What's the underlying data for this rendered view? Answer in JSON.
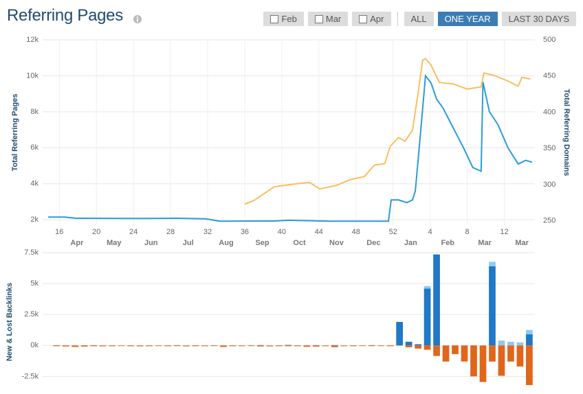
{
  "header": {
    "title": "Referring Pages",
    "buttons": [
      {
        "label": "Feb",
        "checkbox": true
      },
      {
        "label": "Mar",
        "checkbox": true
      },
      {
        "label": "Apr",
        "checkbox": true
      },
      {
        "label": "ALL"
      },
      {
        "label": "ONE YEAR",
        "active": true
      },
      {
        "label": "LAST 30 DAYS"
      }
    ]
  },
  "chart_data": [
    {
      "type": "line",
      "y_label": "Total Referring Pages",
      "y2_label": "Total Referring Domains",
      "xlim": [
        14.2,
        67.3
      ],
      "xticks": [
        16,
        20,
        24,
        28,
        32,
        36,
        40,
        44,
        48,
        52,
        {
          "value": 56,
          "label": "4"
        },
        {
          "value": 60,
          "label": "8"
        },
        {
          "value": 64,
          "label": "12"
        }
      ],
      "month_ticks": [
        {
          "value": 17.9,
          "label": "Apr"
        },
        {
          "value": 21.9,
          "label": "May"
        },
        {
          "value": 25.9,
          "label": "Jun"
        },
        {
          "value": 29.9,
          "label": "Jul"
        },
        {
          "value": 34.0,
          "label": "Aug"
        },
        {
          "value": 37.9,
          "label": "Sep"
        },
        {
          "value": 41.9,
          "label": "Oct"
        },
        {
          "value": 45.9,
          "label": "Nov"
        },
        {
          "value": 49.9,
          "label": "Dec"
        },
        {
          "value": 53.9,
          "label": "Jan"
        },
        {
          "value": 57.9,
          "label": "Feb"
        },
        {
          "value": 61.9,
          "label": "Mar"
        },
        {
          "value": 65.9,
          "label": "Mar"
        }
      ],
      "ylim": [
        1700,
        12000
      ],
      "yticks": [
        {
          "value": 2000,
          "label": "2k"
        },
        {
          "value": 4000,
          "label": "4k"
        },
        {
          "value": 6000,
          "label": "6k"
        },
        {
          "value": 8000,
          "label": "8k"
        },
        {
          "value": 10000,
          "label": "10k"
        },
        {
          "value": 12000,
          "label": "12k"
        }
      ],
      "y2lim": [
        244,
        500
      ],
      "y2ticks": [
        250,
        300,
        350,
        400,
        450,
        500
      ],
      "grid": true,
      "series": [
        {
          "color": "#2b9ad6",
          "x": [
            14.8,
            16.6,
            17.8,
            24.4,
            28.9,
            31.8,
            33.3,
            39.2,
            40.7,
            45.2,
            51.5,
            51.8,
            52.6,
            53.5,
            54.1,
            54.4,
            55.0,
            55.5,
            56.1,
            56.7,
            57.4,
            58.1,
            58.9,
            59.6,
            60.6,
            61.5,
            61.7,
            62.4,
            63.3,
            64.4,
            65.5,
            66.3,
            67.0
          ],
          "values": [
            2150,
            2150,
            2080,
            2070,
            2080,
            2050,
            1920,
            1930,
            1970,
            1920,
            1920,
            3100,
            3100,
            2950,
            3100,
            3600,
            7000,
            10000,
            9600,
            8700,
            8200,
            7500,
            6700,
            6000,
            4900,
            4700,
            9650,
            8000,
            7300,
            6000,
            5100,
            5300,
            5200
          ]
        },
        {
          "color": "#f9be5d",
          "axis": "y2",
          "x": [
            36.0,
            37.0,
            37.8,
            39.2,
            41.5,
            43.0,
            44.1,
            45.9,
            47.4,
            48.9,
            50.0,
            51.1,
            51.7,
            52.6,
            53.3,
            54.1,
            54.6,
            55.2,
            55.5,
            56.1,
            57.0,
            58.5,
            60.0,
            61.5,
            61.8,
            62.9,
            64.4,
            65.5,
            65.9,
            66.8
          ],
          "values": [
            273,
            278,
            285,
            297,
            301,
            303,
            294,
            299,
            307,
            311,
            327,
            329,
            353,
            365,
            360,
            375,
            418,
            472,
            474,
            465,
            441,
            439,
            432,
            435,
            454,
            451,
            443,
            436,
            448,
            446
          ]
        }
      ]
    },
    {
      "type": "bar",
      "y_label": "New & Lost Backlinks",
      "stacked": true,
      "x": [
        15,
        16,
        17,
        18,
        19,
        20,
        21,
        22,
        23,
        24,
        25,
        26,
        27,
        28,
        29,
        30,
        31,
        32,
        33,
        34,
        35,
        36,
        37,
        38,
        39,
        40,
        41,
        42,
        43,
        44,
        45,
        46,
        47,
        48,
        49,
        50,
        51,
        52,
        53,
        54,
        55,
        56,
        57,
        58,
        59,
        60,
        61,
        62,
        63,
        64,
        65,
        66
      ],
      "xlim": [
        13.5,
        66.6
      ],
      "ylim": [
        -3700,
        7500
      ],
      "yticks": [
        {
          "value": 7500,
          "label": "7.5k"
        },
        {
          "value": 5000,
          "label": "5k"
        },
        {
          "value": 2500,
          "label": "2.5k"
        },
        {
          "value": 0,
          "label": "0k"
        },
        {
          "value": -2500,
          "label": "-2.5k"
        }
      ],
      "grid": true,
      "series": [
        {
          "color": "#1f78c8",
          "values": [
            20,
            10,
            0,
            10,
            20,
            0,
            10,
            0,
            10,
            0,
            10,
            0,
            10,
            20,
            0,
            10,
            0,
            10,
            0,
            10,
            0,
            10,
            30,
            0,
            10,
            40,
            10,
            0,
            20,
            0,
            30,
            0,
            10,
            0,
            20,
            0,
            10,
            1900,
            300,
            100,
            4600,
            7350,
            0,
            0,
            0,
            0,
            0,
            6400,
            0,
            0,
            0,
            900
          ]
        },
        {
          "color": "#8ecbf0",
          "values": [
            0,
            0,
            0,
            0,
            0,
            0,
            0,
            0,
            0,
            0,
            0,
            0,
            0,
            0,
            0,
            0,
            0,
            0,
            0,
            0,
            0,
            0,
            0,
            0,
            0,
            0,
            0,
            0,
            0,
            0,
            0,
            0,
            0,
            0,
            0,
            0,
            0,
            0,
            0,
            0,
            200,
            0,
            0,
            0,
            0,
            0,
            0,
            350,
            400,
            300,
            250,
            350
          ]
        },
        {
          "color": "#e0661a",
          "values": [
            -60,
            -80,
            -120,
            -90,
            -60,
            -70,
            -60,
            -50,
            -60,
            -70,
            -60,
            -50,
            -60,
            -50,
            -70,
            -60,
            -60,
            -50,
            -120,
            -60,
            -60,
            -50,
            -80,
            -70,
            -60,
            -60,
            -60,
            -110,
            -90,
            -60,
            -140,
            -60,
            -60,
            -50,
            -50,
            -50,
            -60,
            0,
            -150,
            -250,
            -350,
            -850,
            -1300,
            -700,
            -1300,
            -2500,
            -2950,
            -1300,
            -2450,
            -1300,
            -1700,
            -3200
          ]
        }
      ]
    }
  ]
}
